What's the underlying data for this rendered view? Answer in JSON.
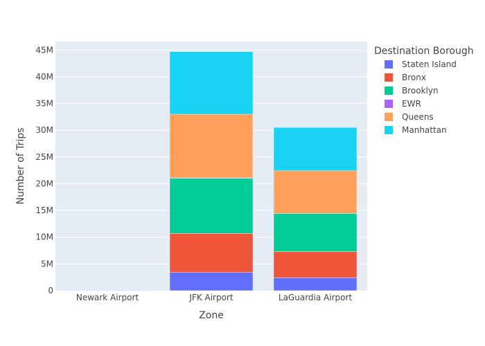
{
  "chart_data": {
    "type": "bar",
    "stacked": true,
    "xlabel": "Zone",
    "ylabel": "Number of Trips",
    "categories": [
      "Newark Airport",
      "JFK Airport",
      "LaGuardia Airport"
    ],
    "ylim": [
      0,
      46600000
    ],
    "yticks": [
      0,
      5000000,
      10000000,
      15000000,
      20000000,
      25000000,
      30000000,
      35000000,
      40000000,
      45000000
    ],
    "ytick_labels": [
      "0",
      "5M",
      "10M",
      "15M",
      "20M",
      "25M",
      "30M",
      "35M",
      "40M",
      "45M"
    ],
    "grid": true,
    "legend": {
      "title": "Destination Borough",
      "position": "right"
    },
    "series": [
      {
        "name": "Staten Island",
        "color": "#636efa",
        "values": [
          10000,
          3400000,
          2400000
        ]
      },
      {
        "name": "Bronx",
        "color": "#ef553b",
        "values": [
          10000,
          7300000,
          4900000
        ]
      },
      {
        "name": "Brooklyn",
        "color": "#00cc96",
        "values": [
          20000,
          10300000,
          7100000
        ]
      },
      {
        "name": "EWR",
        "color": "#ab63fa",
        "values": [
          30000,
          100000,
          20000
        ]
      },
      {
        "name": "Queens",
        "color": "#ffa15a",
        "values": [
          20000,
          11900000,
          8000000
        ]
      },
      {
        "name": "Manhattan",
        "color": "#19d3f3",
        "values": [
          60000,
          11700000,
          8100000
        ]
      }
    ]
  }
}
